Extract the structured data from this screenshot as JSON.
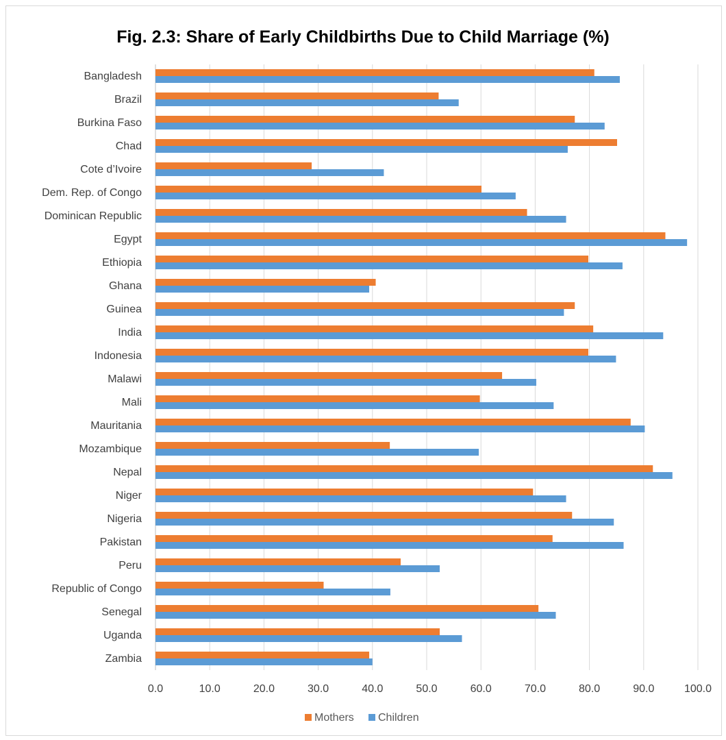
{
  "chart_data": {
    "type": "bar",
    "orientation": "horizontal",
    "title": "Fig. 2.3: Share of Early Childbirths Due to Child Marriage (%)",
    "categories": [
      "Bangladesh",
      "Brazil",
      "Burkina Faso",
      "Chad",
      "Cote d’Ivoire",
      "Dem. Rep. of Congo",
      "Dominican Republic",
      "Egypt",
      "Ethiopia",
      "Ghana",
      "Guinea",
      "India",
      "Indonesia",
      "Malawi",
      "Mali",
      "Mauritania",
      "Mozambique",
      "Nepal",
      "Niger",
      "Nigeria",
      "Pakistan",
      "Peru",
      "Republic of Congo",
      "Senegal",
      "Uganda",
      "Zambia"
    ],
    "series": [
      {
        "name": "Mothers",
        "color": "#ED7D31",
        "values": [
          80.9,
          52.2,
          77.3,
          85.1,
          28.8,
          60.1,
          68.5,
          94.0,
          79.8,
          40.6,
          77.3,
          80.7,
          79.8,
          63.9,
          59.8,
          87.6,
          43.2,
          91.7,
          69.6,
          76.8,
          73.2,
          45.2,
          31.0,
          70.6,
          52.4,
          39.4
        ]
      },
      {
        "name": "Children",
        "color": "#5B9BD5",
        "values": [
          85.6,
          55.9,
          82.8,
          76.0,
          42.1,
          66.4,
          75.7,
          98.0,
          86.1,
          39.4,
          75.3,
          93.6,
          84.9,
          70.2,
          73.4,
          90.2,
          59.6,
          95.3,
          75.7,
          84.5,
          86.3,
          52.4,
          43.3,
          73.8,
          56.5,
          40.0
        ]
      }
    ],
    "xlim": [
      0,
      100
    ],
    "xticks": [
      "0.0",
      "10.0",
      "20.0",
      "30.0",
      "40.0",
      "50.0",
      "60.0",
      "70.0",
      "80.0",
      "90.0",
      "100.0"
    ],
    "grid": "vertical",
    "legend": "bottom"
  }
}
